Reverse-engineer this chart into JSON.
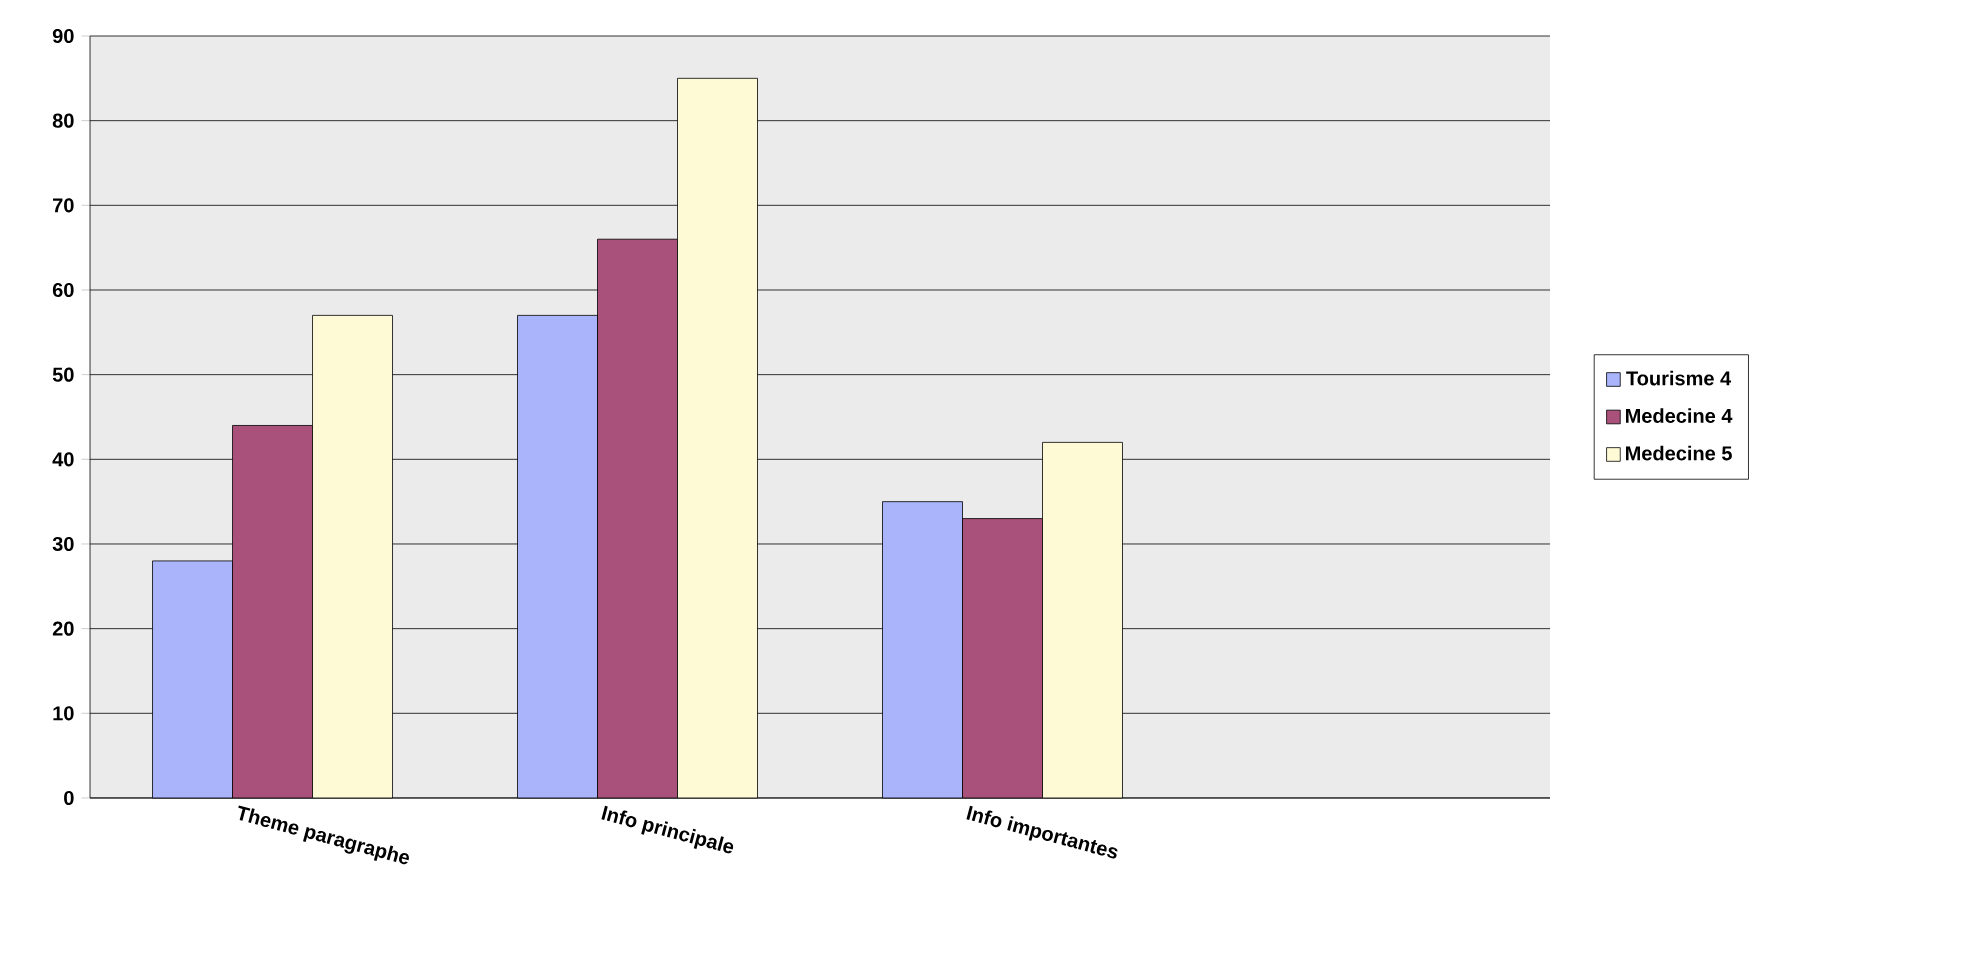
{
  "chart_data": {
    "type": "bar",
    "categories": [
      "Theme paragraphe",
      "Info principale",
      "Info importantes",
      null
    ],
    "series": [
      {
        "name": "Tourisme 4",
        "color": "#a9b4fa",
        "values": [
          28,
          57,
          35,
          null
        ]
      },
      {
        "name": "Medecine 4",
        "color": "#a9517a",
        "values": [
          44,
          66,
          33,
          null
        ]
      },
      {
        "name": "Medecine 5",
        "color": "#fffad6",
        "values": [
          57,
          85,
          42,
          null
        ]
      }
    ],
    "ylim": [
      0,
      90
    ],
    "yticks": [
      0,
      10,
      20,
      30,
      40,
      50,
      60,
      70,
      80,
      90
    ],
    "grid": "y",
    "legend": "right"
  }
}
